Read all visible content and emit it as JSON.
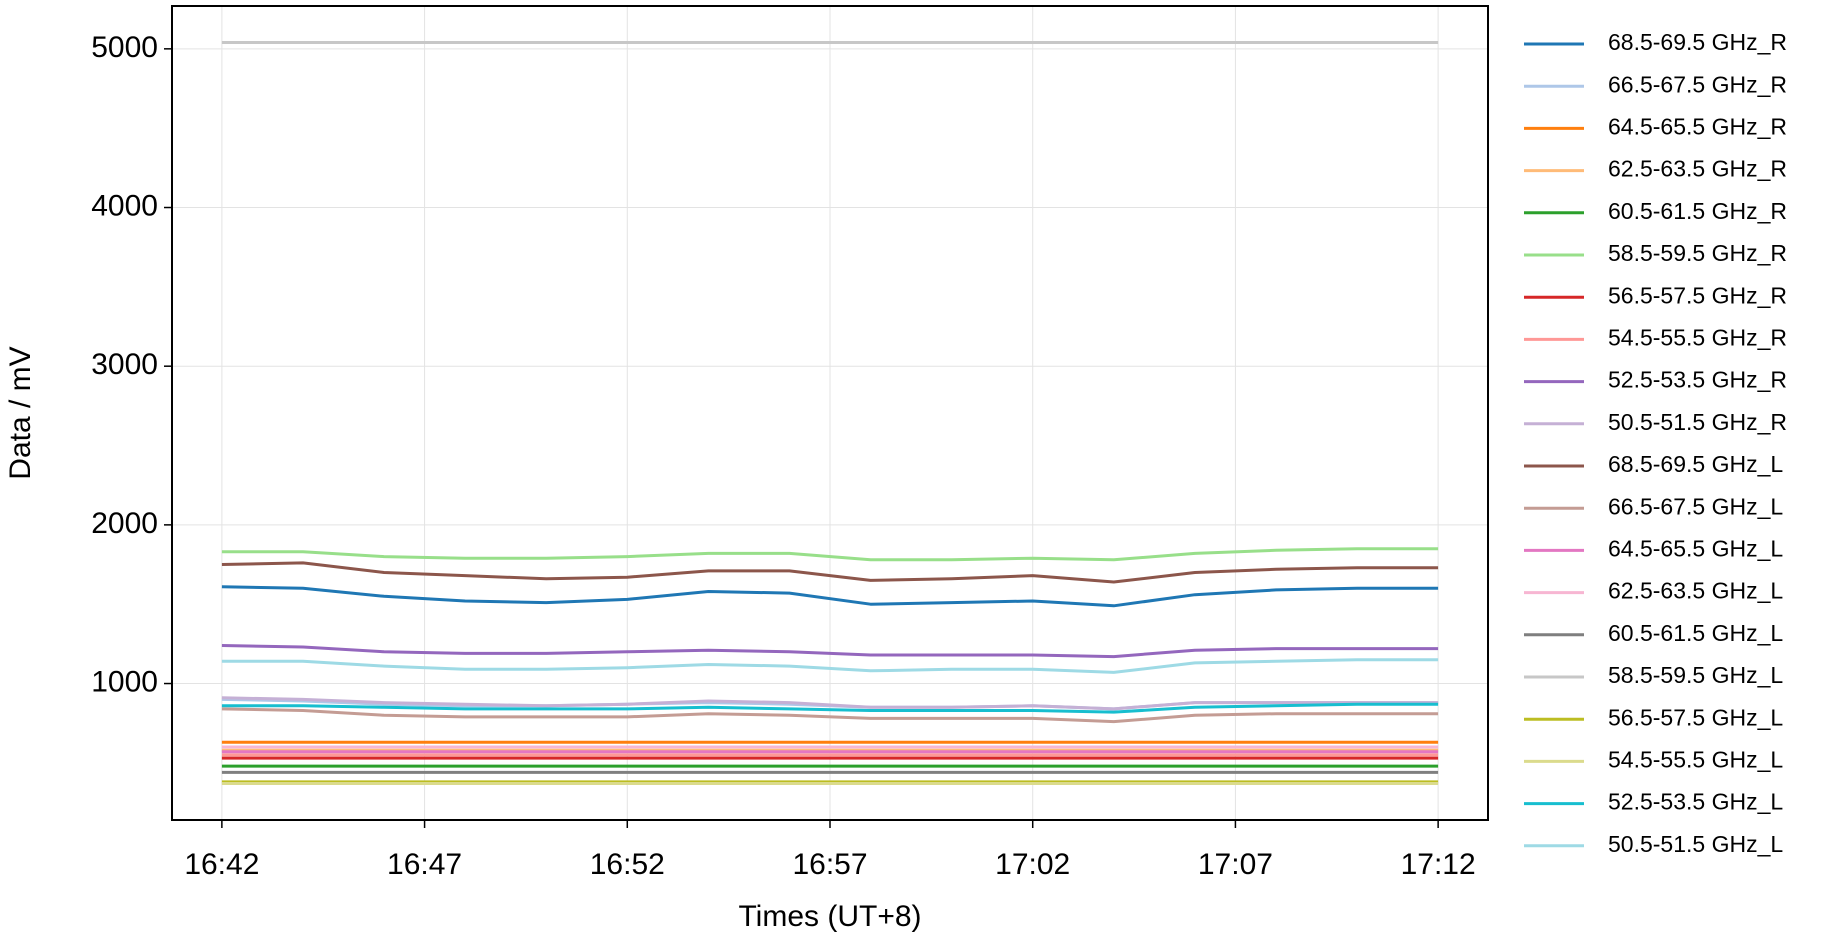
{
  "chart_data": {
    "type": "line",
    "xlabel": "Times (UT+8)",
    "ylabel": "Data / mV",
    "x": [
      "16:42",
      "16:44",
      "16:46",
      "16:48",
      "16:50",
      "16:52",
      "16:54",
      "16:56",
      "16:58",
      "17:00",
      "17:02",
      "17:04",
      "17:06",
      "17:08",
      "17:10",
      "17:12"
    ],
    "xticks": [
      "16:42",
      "16:47",
      "16:52",
      "16:57",
      "17:02",
      "17:07",
      "17:12"
    ],
    "ylim": [
      140,
      5270
    ],
    "yticks": [
      1000,
      2000,
      3000,
      4000,
      5000
    ],
    "grid": true,
    "legend": "outside right",
    "series": [
      {
        "name": "68.5-69.5 GHz_R",
        "color": "#1f77b4",
        "values": [
          1610,
          1600,
          1550,
          1520,
          1510,
          1530,
          1580,
          1570,
          1500,
          1510,
          1520,
          1490,
          1560,
          1590,
          1600,
          1600
        ]
      },
      {
        "name": "66.5-67.5 GHz_R",
        "color": "#aec7e8",
        "values": [
          900,
          890,
          870,
          860,
          860,
          870,
          880,
          870,
          850,
          850,
          860,
          840,
          880,
          880,
          880,
          880
        ]
      },
      {
        "name": "64.5-65.5 GHz_R",
        "color": "#ff7f0e",
        "values": [
          630,
          630,
          630,
          630,
          630,
          630,
          630,
          630,
          630,
          630,
          630,
          630,
          630,
          630,
          630,
          630
        ]
      },
      {
        "name": "62.5-63.5 GHz_R",
        "color": "#ffbb78",
        "values": [
          580,
          580,
          580,
          580,
          580,
          580,
          580,
          580,
          580,
          580,
          580,
          580,
          580,
          580,
          580,
          580
        ]
      },
      {
        "name": "60.5-61.5 GHz_R",
        "color": "#2ca02c",
        "values": [
          480,
          480,
          480,
          480,
          480,
          480,
          480,
          480,
          480,
          480,
          480,
          480,
          480,
          480,
          480,
          480
        ]
      },
      {
        "name": "58.5-59.5 GHz_R",
        "color": "#98df8a",
        "values": [
          1830,
          1830,
          1800,
          1790,
          1790,
          1800,
          1820,
          1820,
          1780,
          1780,
          1790,
          1780,
          1820,
          1840,
          1850,
          1850
        ]
      },
      {
        "name": "56.5-57.5 GHz_R",
        "color": "#d62728",
        "values": [
          530,
          530,
          530,
          530,
          530,
          530,
          530,
          530,
          530,
          530,
          530,
          530,
          530,
          530,
          530,
          530
        ]
      },
      {
        "name": "54.5-55.5 GHz_R",
        "color": "#ff9896",
        "values": [
          550,
          550,
          550,
          550,
          550,
          550,
          550,
          550,
          550,
          550,
          550,
          550,
          550,
          550,
          550,
          550
        ]
      },
      {
        "name": "52.5-53.5 GHz_R",
        "color": "#9467bd",
        "values": [
          1240,
          1230,
          1200,
          1190,
          1190,
          1200,
          1210,
          1200,
          1180,
          1180,
          1180,
          1170,
          1210,
          1220,
          1220,
          1220
        ]
      },
      {
        "name": "50.5-51.5 GHz_R",
        "color": "#c5b0d5",
        "values": [
          910,
          900,
          880,
          870,
          860,
          870,
          890,
          880,
          850,
          850,
          860,
          840,
          880,
          880,
          880,
          880
        ]
      },
      {
        "name": "68.5-69.5 GHz_L",
        "color": "#8c564b",
        "values": [
          1750,
          1760,
          1700,
          1680,
          1660,
          1670,
          1710,
          1710,
          1650,
          1660,
          1680,
          1640,
          1700,
          1720,
          1730,
          1730
        ]
      },
      {
        "name": "66.5-67.5 GHz_L",
        "color": "#c49c94",
        "values": [
          840,
          830,
          800,
          790,
          790,
          790,
          810,
          800,
          780,
          780,
          780,
          760,
          800,
          810,
          810,
          810
        ]
      },
      {
        "name": "64.5-65.5 GHz_L",
        "color": "#e377c2",
        "values": [
          570,
          570,
          570,
          570,
          570,
          570,
          570,
          570,
          570,
          570,
          570,
          570,
          570,
          570,
          570,
          570
        ]
      },
      {
        "name": "62.5-63.5 GHz_L",
        "color": "#f7b6d2",
        "values": [
          600,
          600,
          600,
          600,
          600,
          600,
          600,
          600,
          600,
          600,
          600,
          600,
          600,
          600,
          600,
          600
        ]
      },
      {
        "name": "60.5-61.5 GHz_L",
        "color": "#7f7f7f",
        "values": [
          440,
          440,
          440,
          440,
          440,
          440,
          440,
          440,
          440,
          440,
          440,
          440,
          440,
          440,
          440,
          440
        ]
      },
      {
        "name": "58.5-59.5 GHz_L",
        "color": "#c7c7c7",
        "values": [
          5040,
          5040,
          5040,
          5040,
          5040,
          5040,
          5040,
          5040,
          5040,
          5040,
          5040,
          5040,
          5040,
          5040,
          5040,
          5040
        ]
      },
      {
        "name": "56.5-57.5 GHz_L",
        "color": "#bcbd22",
        "values": [
          380,
          380,
          380,
          380,
          380,
          380,
          380,
          380,
          380,
          380,
          380,
          380,
          380,
          380,
          380,
          380
        ]
      },
      {
        "name": "54.5-55.5 GHz_L",
        "color": "#dbdb8d",
        "values": [
          370,
          370,
          370,
          370,
          370,
          370,
          370,
          370,
          370,
          370,
          370,
          370,
          370,
          370,
          370,
          370
        ]
      },
      {
        "name": "52.5-53.5 GHz_L",
        "color": "#17becf",
        "values": [
          860,
          860,
          850,
          840,
          840,
          840,
          850,
          840,
          830,
          830,
          830,
          820,
          850,
          860,
          870,
          870
        ]
      },
      {
        "name": "50.5-51.5 GHz_L",
        "color": "#9edae5",
        "values": [
          1140,
          1140,
          1110,
          1090,
          1090,
          1100,
          1120,
          1110,
          1080,
          1090,
          1090,
          1070,
          1130,
          1140,
          1150,
          1150
        ]
      }
    ]
  }
}
